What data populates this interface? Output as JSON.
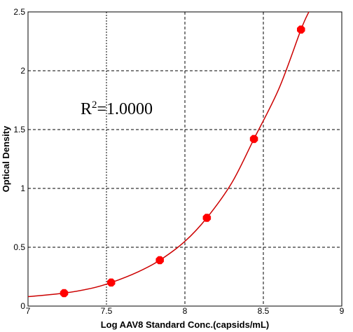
{
  "chart_data": {
    "type": "scatter",
    "xlabel": "Log AAV8 Standard Conc.(capsids/mL)",
    "ylabel": "Optical Density",
    "xlim": [
      7,
      9
    ],
    "ylim": [
      0,
      2.5
    ],
    "xticks": [
      7,
      7.5,
      8,
      8.5,
      9
    ],
    "yticks": [
      0,
      0.5,
      1,
      1.5,
      2,
      2.5
    ],
    "xtick_labels": [
      "7",
      "7.5",
      "8",
      "8.5",
      "9"
    ],
    "ytick_labels": [
      "0",
      "0.5",
      "1",
      "1.5",
      "2",
      "2.5"
    ],
    "grid": true,
    "annotation": {
      "base": "R",
      "sup": "2",
      "rest": "=1.0000"
    },
    "series": [
      {
        "points": [
          {
            "x": 7.23,
            "y": 0.11
          },
          {
            "x": 7.53,
            "y": 0.2
          },
          {
            "x": 7.84,
            "y": 0.39
          },
          {
            "x": 8.14,
            "y": 0.75
          },
          {
            "x": 8.44,
            "y": 1.42
          },
          {
            "x": 8.74,
            "y": 2.35
          }
        ],
        "color": "#ff0000"
      }
    ],
    "fit_curve": {
      "color": "#cc0000",
      "points": [
        {
          "x": 7.0,
          "y": 0.08
        },
        {
          "x": 7.23,
          "y": 0.11
        },
        {
          "x": 7.4,
          "y": 0.15
        },
        {
          "x": 7.53,
          "y": 0.2
        },
        {
          "x": 7.7,
          "y": 0.29
        },
        {
          "x": 7.84,
          "y": 0.39
        },
        {
          "x": 8.0,
          "y": 0.55
        },
        {
          "x": 8.14,
          "y": 0.75
        },
        {
          "x": 8.3,
          "y": 1.05
        },
        {
          "x": 8.44,
          "y": 1.42
        },
        {
          "x": 8.6,
          "y": 1.85
        },
        {
          "x": 8.74,
          "y": 2.35
        },
        {
          "x": 8.79,
          "y": 2.5
        }
      ]
    }
  }
}
